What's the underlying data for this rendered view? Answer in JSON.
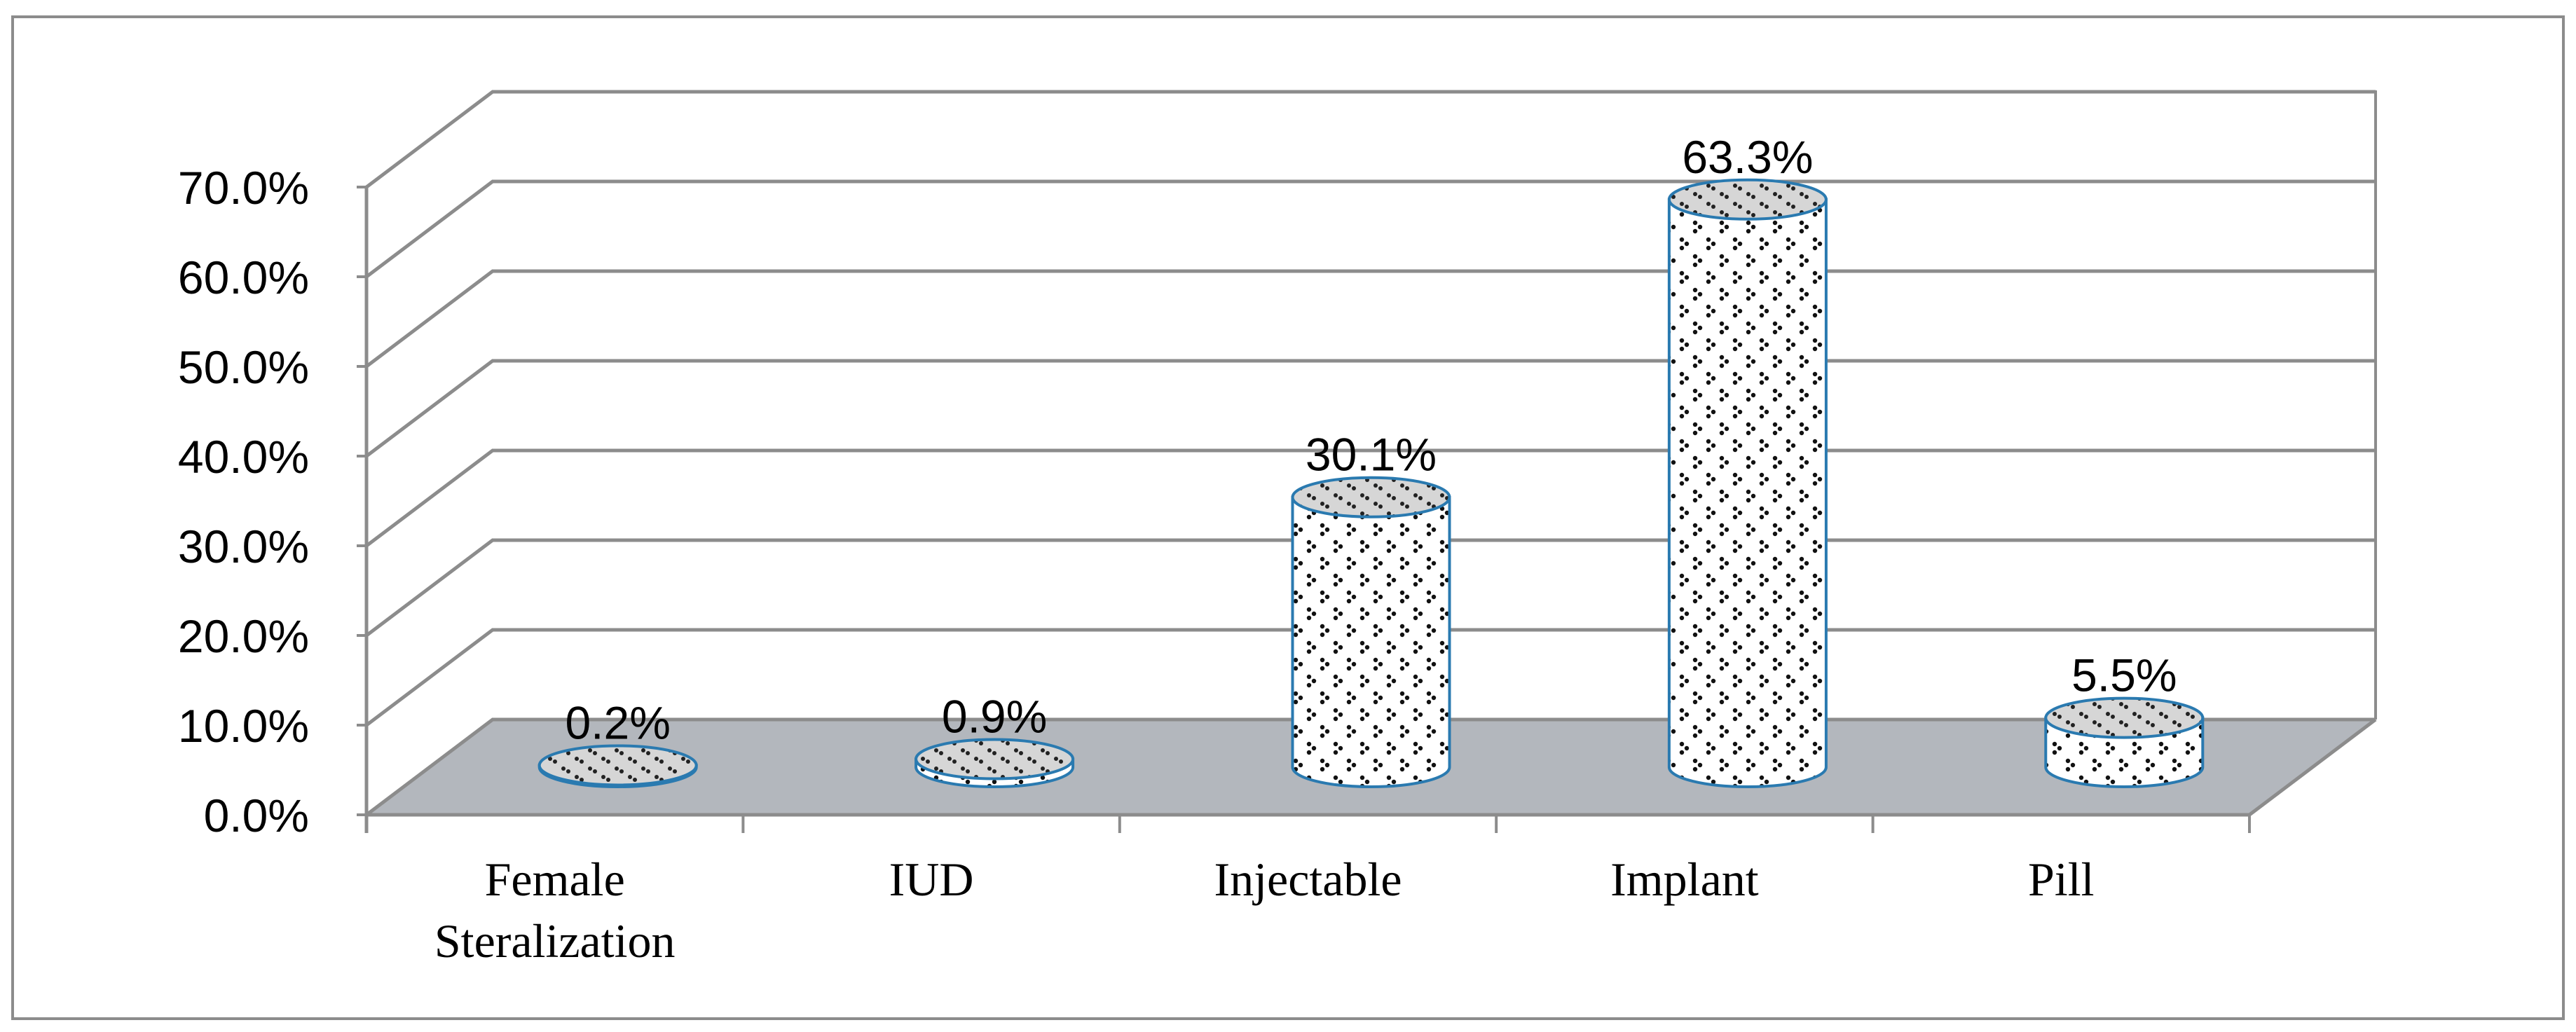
{
  "chart_data": {
    "type": "bar",
    "style": "3d-cylinder",
    "categories": [
      "Female Sterilization",
      "IUD",
      "Injectable",
      "Implant",
      "Pill"
    ],
    "category_label_lines": [
      [
        "Female",
        "Steralization"
      ],
      [
        "IUD"
      ],
      [
        "Injectable"
      ],
      [
        "Implant"
      ],
      [
        "Pill"
      ]
    ],
    "values": [
      0.2,
      0.9,
      30.1,
      63.3,
      5.5
    ],
    "value_labels": [
      "0.2%",
      "0.9%",
      "30.1%",
      "63.3%",
      "5.5%"
    ],
    "ylim": [
      0,
      70
    ],
    "ytick_step": 10,
    "ytick_labels": [
      "0.0%",
      "10.0%",
      "20.0%",
      "30.0%",
      "40.0%",
      "50.0%",
      "60.0%",
      "70.0%"
    ],
    "title": "",
    "xlabel": "",
    "ylabel": "",
    "grid": true,
    "legend": "none",
    "colors": {
      "bar_fill": "#ffffff",
      "bar_pattern": "#000000",
      "bar_outline": "#2a7ab0",
      "floor": "#b3b7bd",
      "grid": "#8c8c8c",
      "frame": "#8c8c8c"
    }
  }
}
